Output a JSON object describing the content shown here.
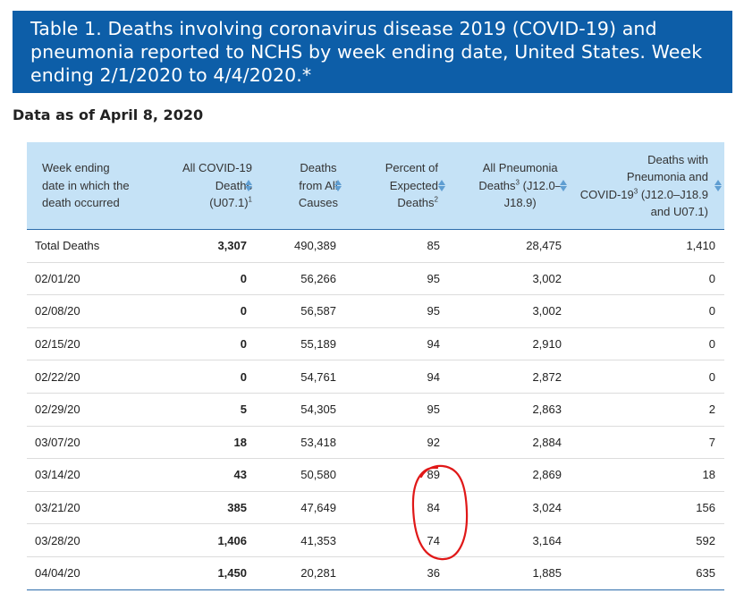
{
  "title": "Table 1. Deaths involving coronavirus disease 2019 (COVID-19) and pneumonia reported to NCHS by week ending date, United States. Week ending 2/1/2020 to 4/4/2020.*",
  "data_as_of": "Data as of April 8, 2020",
  "columns": [
    {
      "lines": [
        "Week ending",
        "date in which the",
        "death occurred"
      ],
      "sortable": false
    },
    {
      "lines": [
        "All COVID-19",
        "Deaths",
        "(U07.1)"
      ],
      "sup": "1",
      "sortable": true
    },
    {
      "lines": [
        "Deaths",
        "from All",
        "Causes"
      ],
      "sortable": true
    },
    {
      "lines": [
        "Percent of",
        "Expected",
        "Deaths"
      ],
      "sup": "2",
      "sortable": true
    },
    {
      "lines": [
        "All Pneumonia",
        "Deaths",
        "(J12.0–",
        "J18.9)"
      ],
      "sup": "3",
      "sortable": true
    },
    {
      "lines": [
        "Deaths with",
        "Pneumonia and",
        "COVID-19",
        "(J12.0–J18.9",
        "and U07.1)"
      ],
      "sup": "3",
      "sortable": true
    }
  ],
  "rows": [
    [
      "Total Deaths",
      "3,307",
      "490,389",
      "85",
      "28,475",
      "1,410"
    ],
    [
      "02/01/20",
      "0",
      "56,266",
      "95",
      "3,002",
      "0"
    ],
    [
      "02/08/20",
      "0",
      "56,587",
      "95",
      "3,002",
      "0"
    ],
    [
      "02/15/20",
      "0",
      "55,189",
      "94",
      "2,910",
      "0"
    ],
    [
      "02/22/20",
      "0",
      "54,761",
      "94",
      "2,872",
      "0"
    ],
    [
      "02/29/20",
      "5",
      "54,305",
      "95",
      "2,863",
      "2"
    ],
    [
      "03/07/20",
      "18",
      "53,418",
      "92",
      "2,884",
      "7"
    ],
    [
      "03/14/20",
      "43",
      "50,580",
      "89",
      "2,869",
      "18"
    ],
    [
      "03/21/20",
      "385",
      "47,649",
      "84",
      "3,024",
      "156"
    ],
    [
      "03/28/20",
      "1,406",
      "41,353",
      "74",
      "3,164",
      "592"
    ],
    [
      "04/04/20",
      "1,450",
      "20,281",
      "36",
      "1,885",
      "635"
    ]
  ],
  "colors": {
    "header_bg": "#0d5ea8",
    "thead_bg": "#c5e2f6",
    "sort_arrow": "#5f9ed2",
    "annotation": "#e01818"
  }
}
